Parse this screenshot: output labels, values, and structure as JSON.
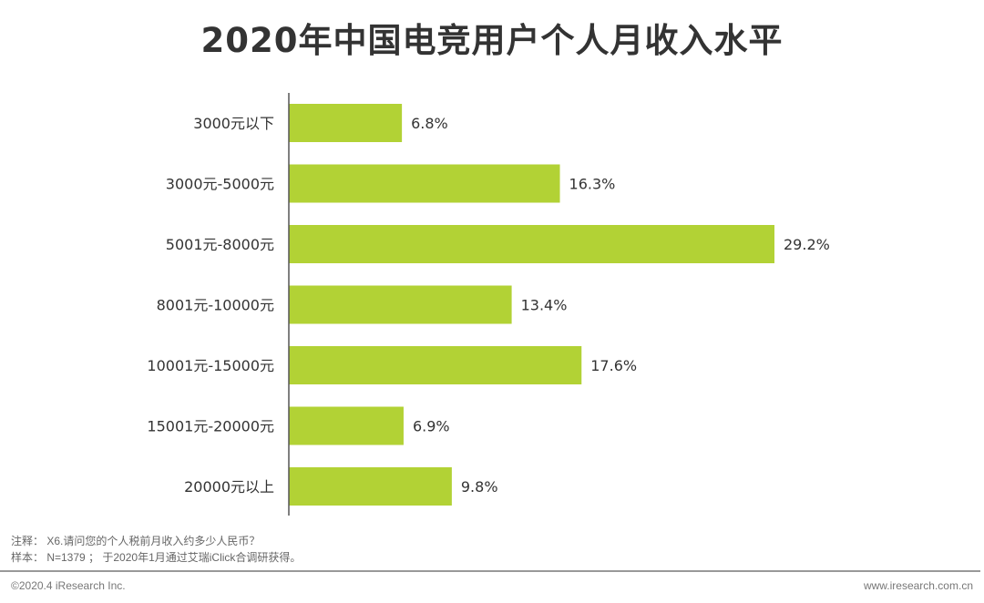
{
  "chart_data": {
    "type": "bar",
    "orientation": "horizontal",
    "title": "2020年中国电竞用户个人月收入水平",
    "categories": [
      "3000元以下",
      "3000元-5000元",
      "5001元-8000元",
      "8001元-10000元",
      "10001元-15000元",
      "15001元-20000元",
      "20000元以上"
    ],
    "values": [
      6.8,
      16.3,
      29.2,
      13.4,
      17.6,
      6.9,
      9.8
    ],
    "value_labels": [
      "6.8%",
      "16.3%",
      "29.2%",
      "13.4%",
      "17.6%",
      "6.9%",
      "9.8%"
    ],
    "unit": "%",
    "bar_color": "#b2d235",
    "grid": false,
    "legend": "none"
  },
  "notes": {
    "note": "注释：  X6.请问您的个人税前月收入约多少人民币？",
    "sample": "样本：  N=1379 ；  于2020年1月通过艾瑞iClick合调研获得。"
  },
  "footer": {
    "copyright": "©2020.4 iResearch Inc.",
    "website": "www.iresearch.com.cn"
  }
}
